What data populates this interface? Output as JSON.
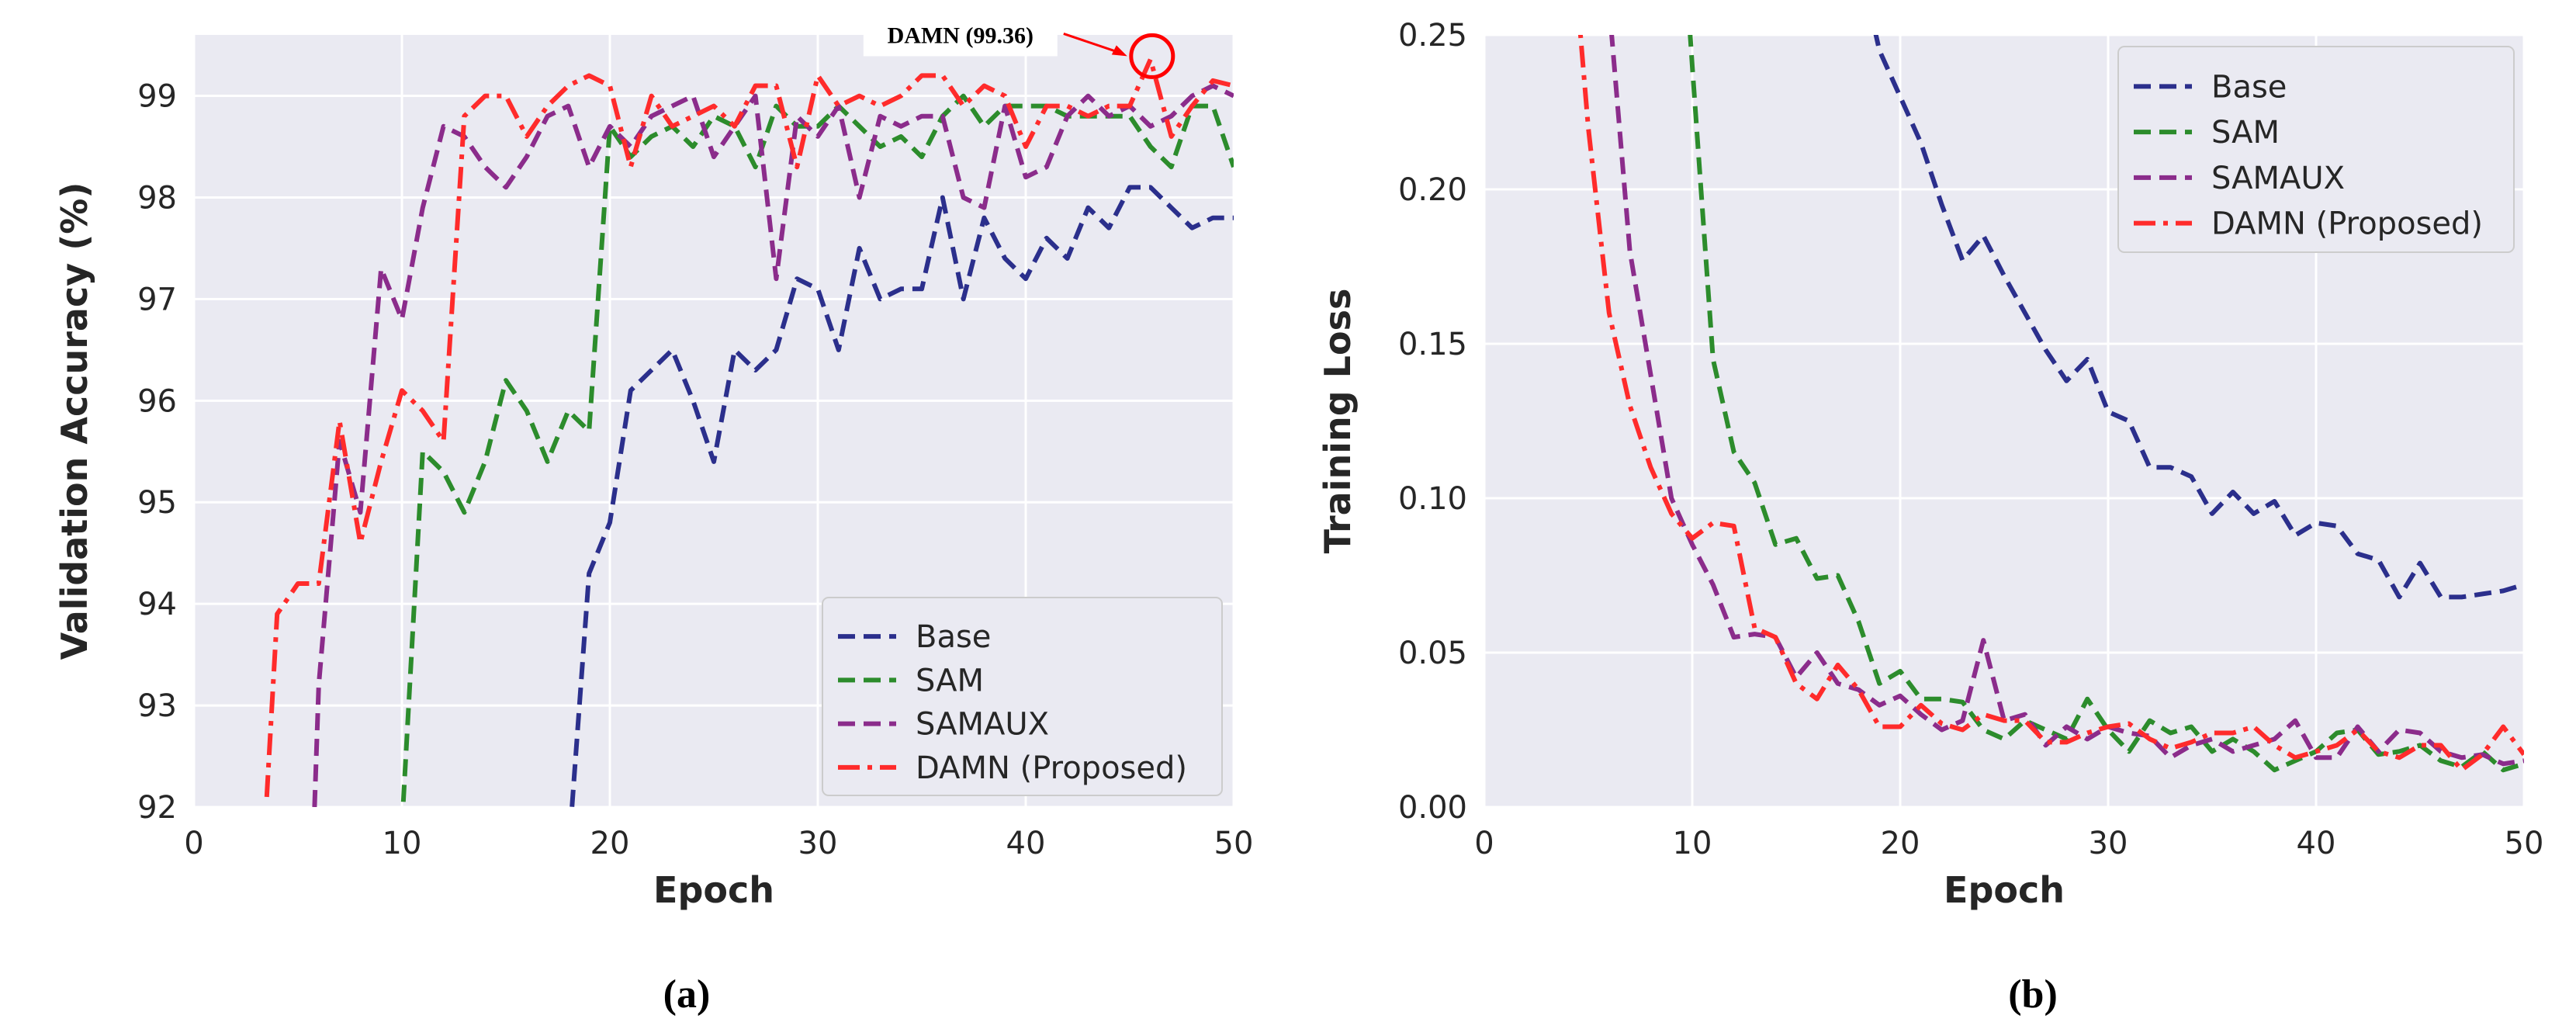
{
  "figure": {
    "caption_a": "(a)",
    "caption_b": "(b)"
  },
  "chart_data": [
    {
      "type": "line",
      "id": "a",
      "xlabel": "Epoch",
      "ylabel": "Validation Accuracy (%)",
      "xlim": [
        0,
        50
      ],
      "ylim": [
        92,
        99.6
      ],
      "xticks": [
        0,
        10,
        20,
        30,
        40,
        50
      ],
      "yticks": [
        92,
        93,
        94,
        95,
        96,
        97,
        98,
        99
      ],
      "legend_position": "lower-right",
      "annotation": {
        "text": "DAMN (99.36)",
        "x": 46,
        "y": 99.36,
        "color": "#ff0000"
      },
      "series": [
        {
          "name": "Base",
          "color": "#2b2f8c",
          "dash": "dashed",
          "x": [
            18,
            19,
            20,
            21,
            22,
            23,
            24,
            25,
            26,
            27,
            28,
            29,
            30,
            31,
            32,
            33,
            34,
            35,
            36,
            37,
            38,
            39,
            40,
            41,
            42,
            43,
            44,
            45,
            46,
            47,
            48,
            49,
            50
          ],
          "y": [
            91.5,
            94.3,
            94.8,
            96.1,
            96.3,
            96.5,
            96.0,
            95.4,
            96.5,
            96.3,
            96.5,
            97.2,
            97.1,
            96.5,
            97.5,
            97.0,
            97.1,
            97.1,
            98.0,
            97.0,
            97.8,
            97.4,
            97.2,
            97.6,
            97.4,
            97.9,
            97.7,
            98.1,
            98.1,
            97.9,
            97.7,
            97.8,
            97.8
          ]
        },
        {
          "name": "SAM",
          "color": "#2c8c2c",
          "dash": "dashed",
          "x": [
            10,
            11,
            12,
            13,
            14,
            15,
            16,
            17,
            18,
            19,
            20,
            21,
            22,
            23,
            24,
            25,
            26,
            27,
            28,
            29,
            30,
            31,
            32,
            33,
            34,
            35,
            36,
            37,
            38,
            39,
            40,
            41,
            42,
            43,
            44,
            45,
            46,
            47,
            48,
            49,
            50
          ],
          "y": [
            91.8,
            95.5,
            95.3,
            94.9,
            95.4,
            96.2,
            95.9,
            95.4,
            95.9,
            95.7,
            98.7,
            98.4,
            98.6,
            98.7,
            98.5,
            98.8,
            98.7,
            98.3,
            98.9,
            98.7,
            98.7,
            98.9,
            98.7,
            98.5,
            98.6,
            98.4,
            98.8,
            99.0,
            98.7,
            98.9,
            98.9,
            98.9,
            98.8,
            98.8,
            98.8,
            98.8,
            98.5,
            98.3,
            98.9,
            98.9,
            98.3
          ]
        },
        {
          "name": "SAMAUX",
          "color": "#8b2c8b",
          "dash": "dashed",
          "x": [
            5.8,
            6,
            7,
            8,
            9,
            10,
            11,
            12,
            13,
            14,
            15,
            16,
            17,
            18,
            19,
            20,
            21,
            22,
            23,
            24,
            25,
            26,
            27,
            28,
            29,
            30,
            31,
            32,
            33,
            34,
            35,
            36,
            37,
            38,
            39,
            40,
            41,
            42,
            43,
            44,
            45,
            46,
            47,
            48,
            49,
            50
          ],
          "y": [
            92.0,
            93.2,
            95.6,
            94.9,
            97.3,
            96.8,
            97.9,
            98.7,
            98.6,
            98.3,
            98.1,
            98.4,
            98.8,
            98.9,
            98.3,
            98.7,
            98.5,
            98.8,
            98.9,
            99.0,
            98.4,
            98.7,
            99.0,
            97.2,
            98.8,
            98.6,
            98.9,
            98.0,
            98.8,
            98.7,
            98.8,
            98.8,
            98.0,
            97.9,
            98.9,
            98.2,
            98.3,
            98.8,
            99.0,
            98.8,
            98.9,
            98.7,
            98.8,
            99.0,
            99.1,
            99.0
          ]
        },
        {
          "name": "DAMN (Proposed)",
          "color": "#ff2b2b",
          "dash": "dashdot",
          "x": [
            3.5,
            4,
            5,
            6,
            7,
            8,
            9,
            10,
            11,
            12,
            13,
            14,
            15,
            16,
            17,
            18,
            19,
            20,
            21,
            22,
            23,
            24,
            25,
            26,
            27,
            28,
            29,
            30,
            31,
            32,
            33,
            34,
            35,
            36,
            37,
            38,
            39,
            40,
            41,
            42,
            43,
            44,
            45,
            46,
            47,
            48,
            49,
            50
          ],
          "y": [
            92.1,
            93.9,
            94.2,
            94.2,
            95.8,
            94.6,
            95.4,
            96.1,
            95.9,
            95.6,
            98.8,
            99.0,
            99.0,
            98.6,
            98.9,
            99.1,
            99.2,
            99.1,
            98.3,
            99.0,
            98.7,
            98.8,
            98.9,
            98.7,
            99.1,
            99.1,
            98.3,
            99.2,
            98.9,
            99.0,
            98.9,
            99.0,
            99.2,
            99.2,
            98.9,
            99.1,
            99.0,
            98.5,
            98.9,
            98.9,
            98.8,
            98.9,
            98.9,
            99.36,
            98.6,
            98.9,
            99.15,
            99.1
          ]
        }
      ]
    },
    {
      "type": "line",
      "id": "b",
      "xlabel": "Epoch",
      "ylabel": "Training Loss",
      "xlim": [
        0,
        50
      ],
      "ylim": [
        0.0,
        0.25
      ],
      "xticks": [
        0,
        10,
        20,
        30,
        40,
        50
      ],
      "yticks": [
        0.0,
        0.05,
        0.1,
        0.15,
        0.2,
        0.25
      ],
      "ytick_labels": [
        "0.00",
        "0.05",
        "0.10",
        "0.15",
        "0.20",
        "0.25"
      ],
      "legend_position": "top-right",
      "series": [
        {
          "name": "Base",
          "color": "#2b2f8c",
          "dash": "dashed",
          "x": [
            18.5,
            19,
            20,
            21,
            22,
            23,
            24,
            25,
            26,
            27,
            28,
            29,
            30,
            31,
            32,
            33,
            34,
            35,
            36,
            37,
            38,
            39,
            40,
            41,
            42,
            43,
            44,
            45,
            46,
            47,
            48,
            49,
            50
          ],
          "y": [
            0.26,
            0.245,
            0.23,
            0.215,
            0.195,
            0.177,
            0.185,
            0.172,
            0.16,
            0.148,
            0.138,
            0.145,
            0.128,
            0.125,
            0.11,
            0.11,
            0.107,
            0.095,
            0.102,
            0.095,
            0.099,
            0.088,
            0.092,
            0.091,
            0.082,
            0.08,
            0.068,
            0.079,
            0.068,
            0.068,
            0.069,
            0.07,
            0.072
          ]
        },
        {
          "name": "SAM",
          "color": "#2c8c2c",
          "dash": "dashed",
          "x": [
            9.8,
            10,
            11,
            12,
            13,
            14,
            15,
            16,
            17,
            18,
            19,
            20,
            21,
            22,
            23,
            24,
            25,
            26,
            27,
            28,
            29,
            30,
            31,
            32,
            33,
            34,
            35,
            36,
            37,
            38,
            39,
            40,
            41,
            42,
            43,
            44,
            45,
            46,
            47,
            48,
            49,
            50
          ],
          "y": [
            0.26,
            0.24,
            0.145,
            0.115,
            0.105,
            0.085,
            0.087,
            0.074,
            0.075,
            0.06,
            0.04,
            0.044,
            0.035,
            0.035,
            0.034,
            0.025,
            0.022,
            0.028,
            0.025,
            0.022,
            0.035,
            0.025,
            0.018,
            0.028,
            0.024,
            0.026,
            0.018,
            0.022,
            0.018,
            0.012,
            0.015,
            0.018,
            0.024,
            0.025,
            0.017,
            0.018,
            0.02,
            0.015,
            0.013,
            0.018,
            0.012,
            0.014
          ]
        },
        {
          "name": "SAMAUX",
          "color": "#8b2c8b",
          "dash": "dashed",
          "x": [
            6,
            7,
            8,
            9,
            10,
            11,
            12,
            13,
            14,
            15,
            16,
            17,
            18,
            19,
            20,
            21,
            22,
            23,
            24,
            25,
            26,
            27,
            28,
            29,
            30,
            31,
            32,
            33,
            34,
            35,
            36,
            37,
            38,
            39,
            40,
            41,
            42,
            43,
            44,
            45,
            46,
            47,
            48,
            49,
            50
          ],
          "y": [
            0.26,
            0.18,
            0.14,
            0.1,
            0.085,
            0.072,
            0.055,
            0.056,
            0.055,
            0.042,
            0.05,
            0.04,
            0.038,
            0.033,
            0.036,
            0.03,
            0.025,
            0.028,
            0.054,
            0.028,
            0.03,
            0.02,
            0.026,
            0.022,
            0.026,
            0.024,
            0.023,
            0.016,
            0.02,
            0.022,
            0.018,
            0.02,
            0.022,
            0.028,
            0.016,
            0.016,
            0.026,
            0.018,
            0.025,
            0.024,
            0.018,
            0.016,
            0.017,
            0.014,
            0.015
          ]
        },
        {
          "name": "DAMN (Proposed)",
          "color": "#ff2b2b",
          "dash": "dashdot",
          "x": [
            4.5,
            5,
            6,
            7,
            8,
            9,
            10,
            11,
            12,
            13,
            14,
            15,
            16,
            17,
            18,
            19,
            20,
            21,
            22,
            23,
            24,
            25,
            26,
            27,
            28,
            29,
            30,
            31,
            32,
            33,
            34,
            35,
            36,
            37,
            38,
            39,
            40,
            41,
            42,
            43,
            44,
            45,
            46,
            47,
            48,
            49,
            50
          ],
          "y": [
            0.26,
            0.22,
            0.16,
            0.13,
            0.11,
            0.095,
            0.087,
            0.092,
            0.091,
            0.058,
            0.055,
            0.04,
            0.035,
            0.046,
            0.038,
            0.026,
            0.026,
            0.033,
            0.027,
            0.025,
            0.03,
            0.028,
            0.028,
            0.021,
            0.021,
            0.024,
            0.026,
            0.027,
            0.022,
            0.019,
            0.021,
            0.024,
            0.024,
            0.026,
            0.02,
            0.016,
            0.018,
            0.02,
            0.025,
            0.018,
            0.016,
            0.02,
            0.02,
            0.012,
            0.017,
            0.026,
            0.017
          ]
        }
      ]
    }
  ]
}
